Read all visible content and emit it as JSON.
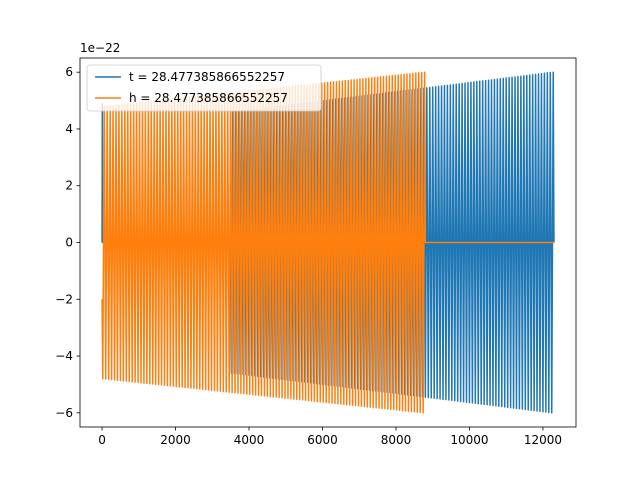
{
  "chart_data": {
    "type": "line",
    "title": "",
    "xlabel": "",
    "ylabel": "",
    "y_offset_label": "1e−22",
    "xlim": [
      -600,
      12900
    ],
    "ylim": [
      -6.5,
      6.5
    ],
    "x_ticks": [
      0,
      2000,
      4000,
      6000,
      8000,
      10000,
      12000
    ],
    "y_ticks": [
      -6,
      -4,
      -2,
      0,
      2,
      4,
      6
    ],
    "x_tick_labels": [
      "0",
      "2000",
      "4000",
      "6000",
      "8000",
      "10000",
      "12000"
    ],
    "y_tick_labels": [
      "−6",
      "−4",
      "−2",
      "0",
      "2",
      "4",
      "6"
    ],
    "grid": false,
    "legend_position": "top-left",
    "series": [
      {
        "name": "t = 28.477385866552257",
        "color": "#1f77b4",
        "segments": [
          {
            "x_start": 0,
            "x_end": 3500,
            "kind": "flat",
            "value": 0,
            "early_spike": [
              0,
              4.9
            ]
          },
          {
            "x_start": 3500,
            "x_end": 12300,
            "kind": "oscillation",
            "cycles": 110,
            "amp_start": 4.6,
            "amp_end": 6.0
          }
        ]
      },
      {
        "name": "h = 28.477385866552257",
        "color": "#ff7f0e",
        "segments": [
          {
            "x_start": 0,
            "x_end": 8800,
            "kind": "oscillation",
            "cycles": 110,
            "amp_start": 4.8,
            "amp_end": 6.0,
            "start_value": -2.0
          },
          {
            "x_start": 8800,
            "x_end": 12300,
            "kind": "flat",
            "value": 0
          }
        ]
      }
    ]
  }
}
